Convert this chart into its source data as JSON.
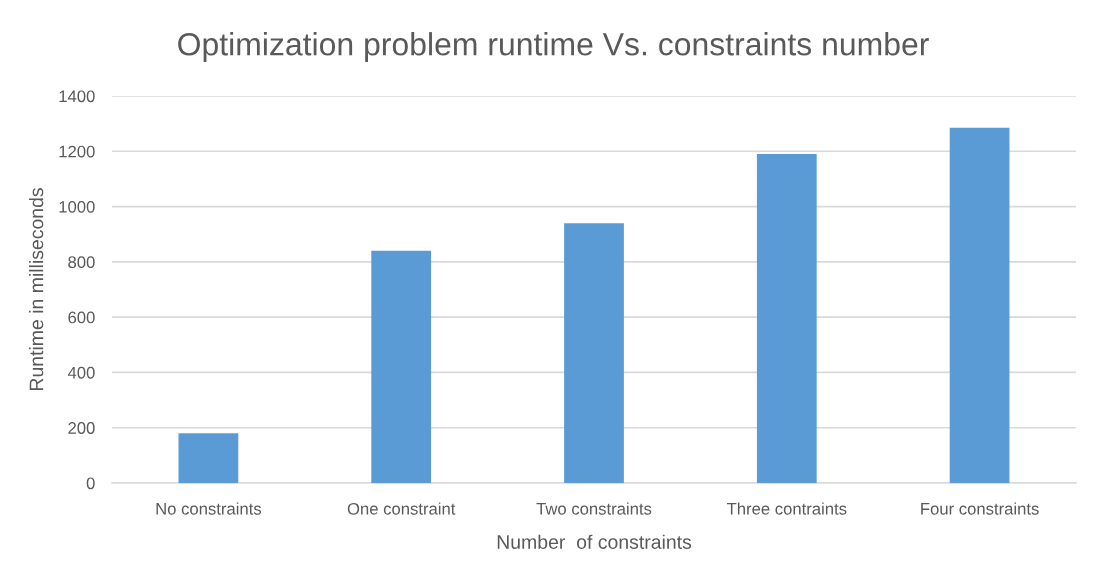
{
  "chart_data": {
    "type": "bar",
    "title": "Optimization problem runtime Vs. constraints number",
    "xlabel": "Number  of constraints",
    "ylabel": "Runtime in milliseconds",
    "categories": [
      "No constraints",
      "One constraint",
      "Two constraints",
      "Three contraints",
      "Four constraints"
    ],
    "values": [
      180,
      840,
      940,
      1190,
      1285
    ],
    "color": "#5b9bd5",
    "ylim": [
      0,
      1400
    ],
    "yticks": [
      0,
      200,
      400,
      600,
      800,
      1000,
      1200,
      1400
    ],
    "grid": "y",
    "legend": false
  }
}
